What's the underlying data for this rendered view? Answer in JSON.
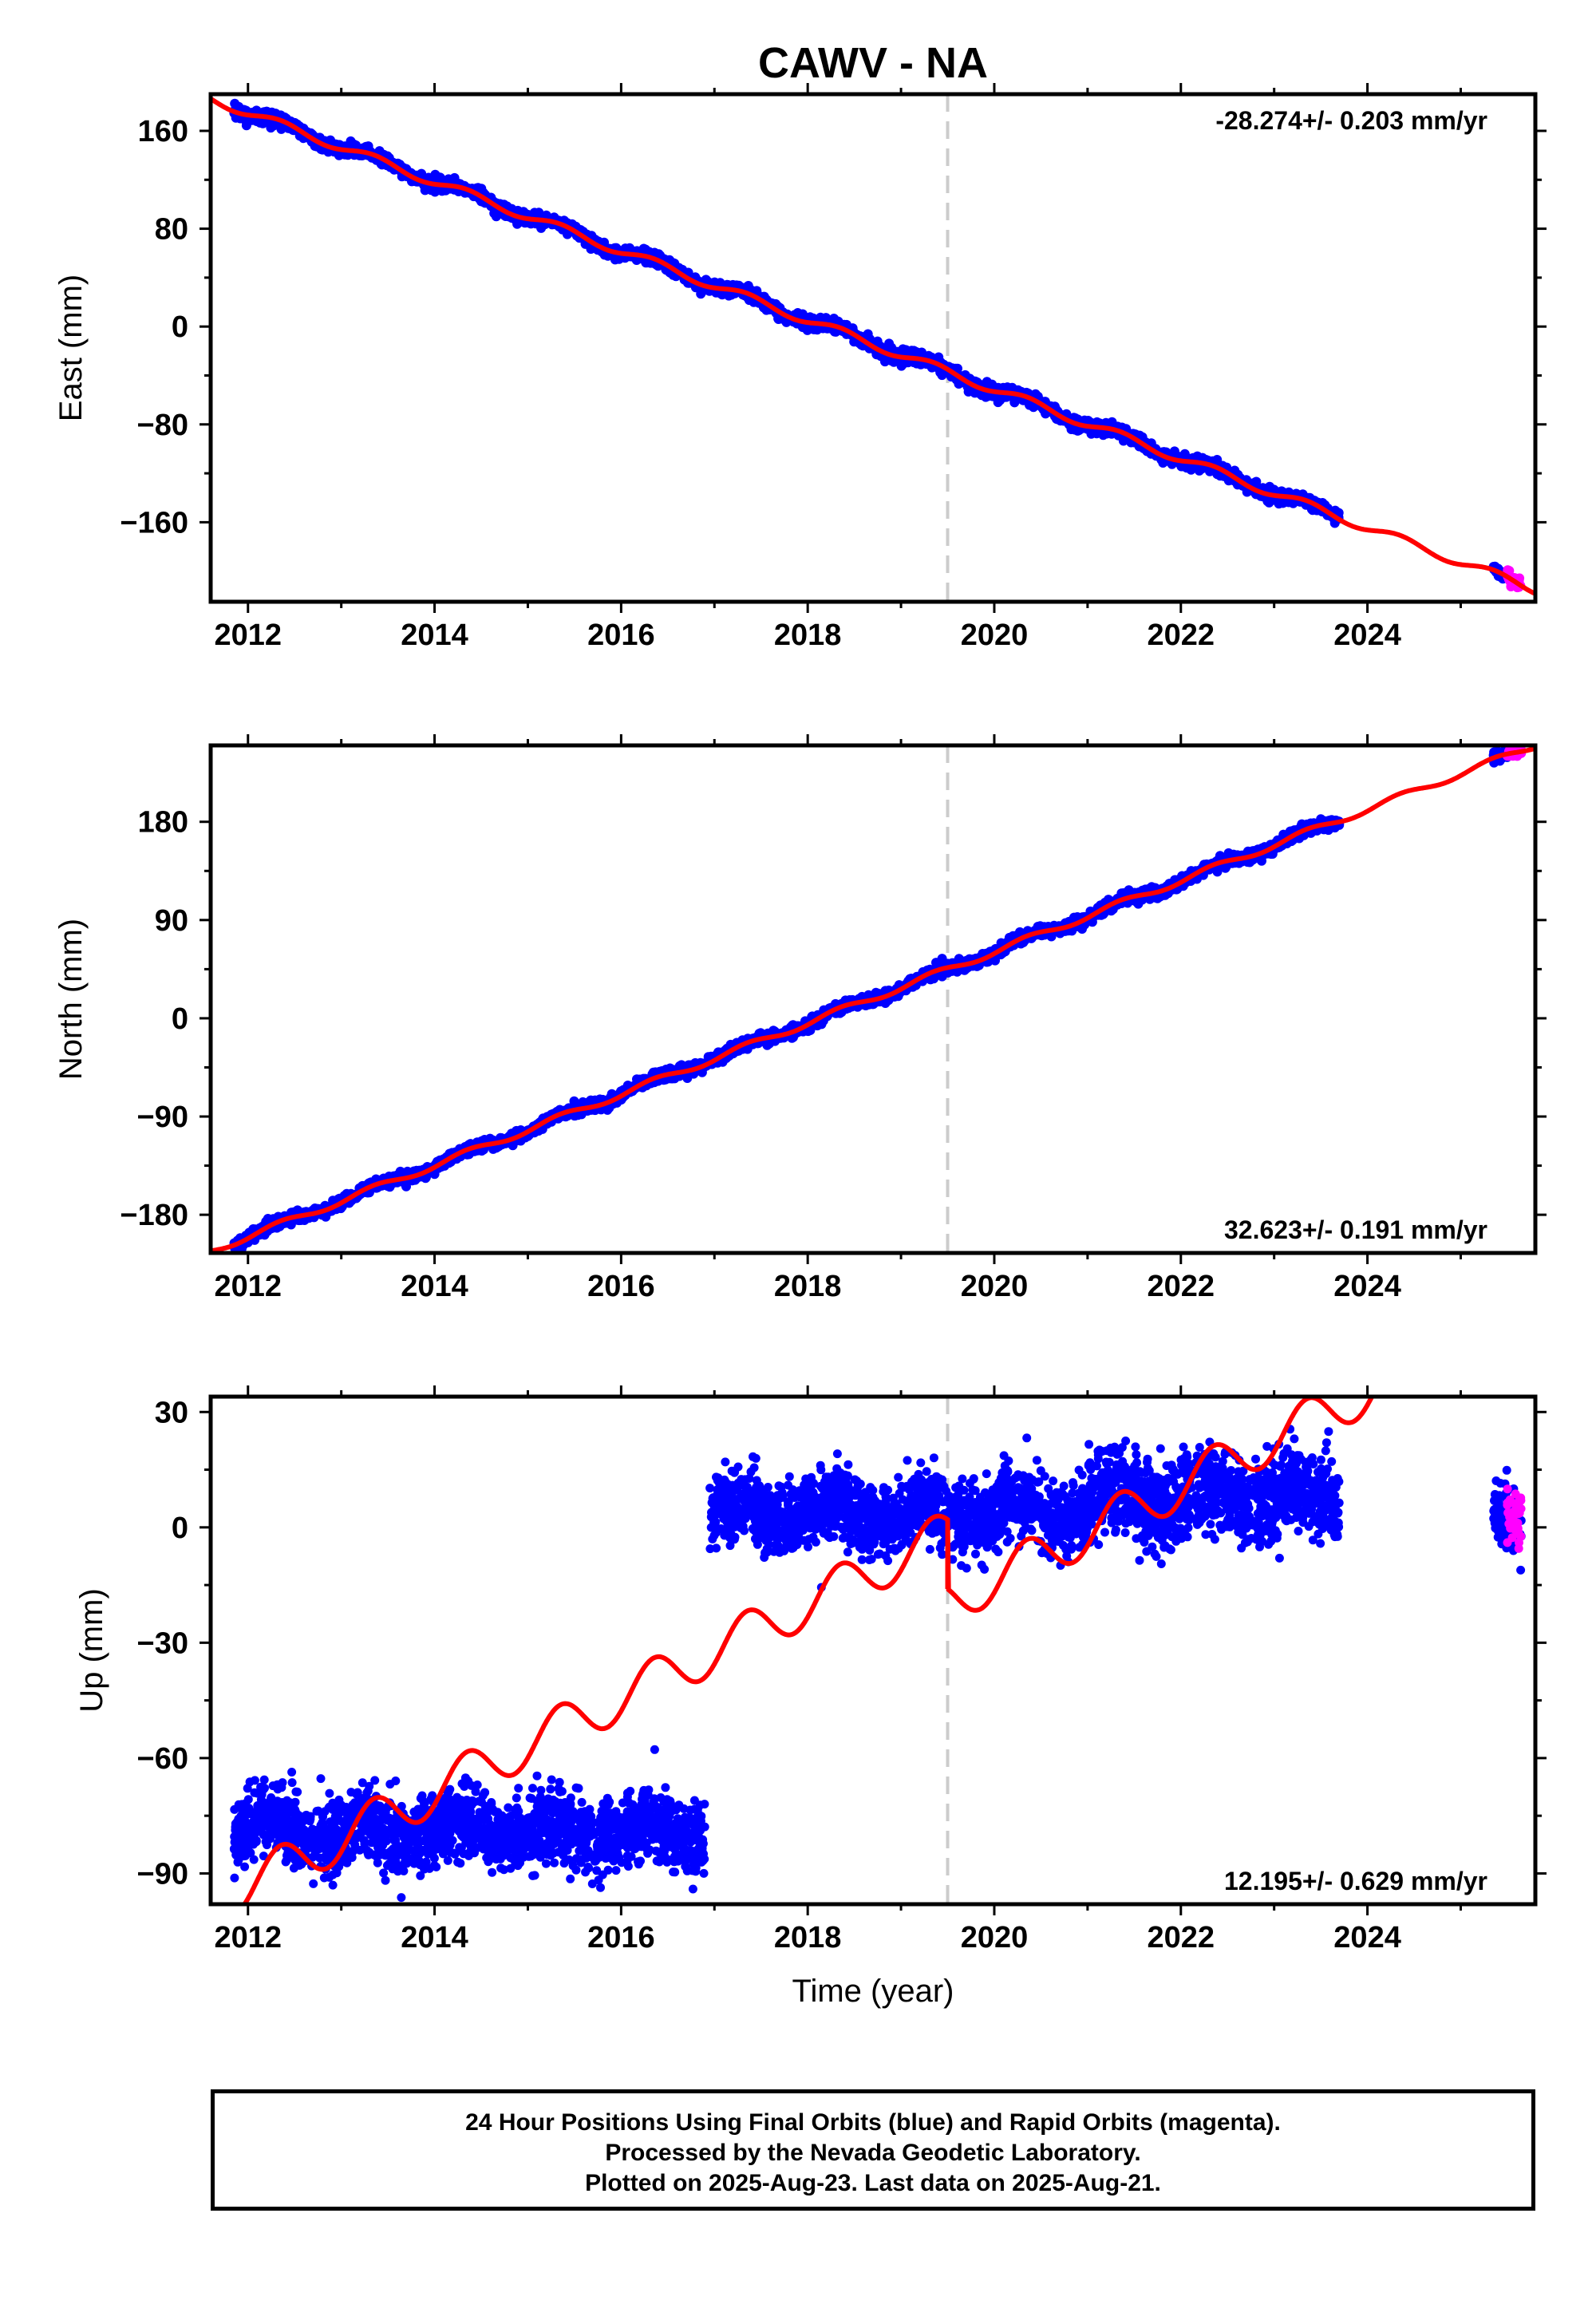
{
  "title": "CAWV - NA",
  "colors": {
    "final": "#0000ff",
    "rapid": "#ff00ff",
    "model": "#ff0000",
    "event": "#cccccc",
    "frame": "#000000"
  },
  "chart_data": [
    {
      "type": "scatter",
      "name": "east",
      "ylabel": "East (mm)",
      "xlabel": "",
      "xlim": [
        2011.6,
        2025.8
      ],
      "ylim": [
        -225,
        190
      ],
      "x_ticks": [
        2012,
        2014,
        2016,
        2018,
        2020,
        2022,
        2024
      ],
      "y_ticks": [
        160,
        80,
        0,
        -80,
        -160
      ],
      "y_tick_labels": [
        "160",
        "80",
        "0",
        "−80",
        "−160"
      ],
      "grid": false,
      "rate_label": "-28.274+/- 0.203 mm/yr",
      "rate_label_position": "top-right",
      "event_line_x": 2019.5,
      "trend": {
        "rate": -28.274,
        "y_at_2012": 175,
        "seasonal_amplitude": 3.5
      },
      "final_orbit_range": [
        2011.85,
        2023.7
      ],
      "rapid_orbit_range": [
        2025.35,
        2025.65
      ],
      "scatter": 2.5
    },
    {
      "type": "scatter",
      "name": "north",
      "ylabel": "North (mm)",
      "xlabel": "",
      "xlim": [
        2011.6,
        2025.8
      ],
      "ylim": [
        -215,
        250
      ],
      "x_ticks": [
        2012,
        2014,
        2016,
        2018,
        2020,
        2022,
        2024
      ],
      "y_ticks": [
        180,
        90,
        0,
        -90,
        -180
      ],
      "y_tick_labels": [
        "180",
        "90",
        "0",
        "−90",
        "−180"
      ],
      "grid": false,
      "rate_label": "32.623+/- 0.191 mm/yr",
      "rate_label_position": "bottom-right",
      "event_line_x": 2019.5,
      "trend": {
        "rate": 32.623,
        "y_at_2012": -200,
        "seasonal_amplitude": 3.0
      },
      "final_orbit_range": [
        2011.85,
        2023.7
      ],
      "rapid_orbit_range": [
        2025.35,
        2025.65
      ],
      "scatter": 2.5
    },
    {
      "type": "scatter",
      "name": "up",
      "ylabel": "Up (mm)",
      "xlabel": "Time (year)",
      "xlim": [
        2011.6,
        2025.8
      ],
      "ylim": [
        -98,
        34
      ],
      "x_ticks": [
        2012,
        2014,
        2016,
        2018,
        2020,
        2022,
        2024
      ],
      "y_ticks": [
        30,
        0,
        -30,
        -60,
        -90
      ],
      "y_tick_labels": [
        "30",
        "0",
        "−30",
        "−60",
        "−90"
      ],
      "grid": false,
      "rate_label": "12.195+/- 0.629 mm/yr",
      "rate_label_position": "bottom-right",
      "event_line_x": 2019.5,
      "trend": {
        "rate": 12.195,
        "y_at_2012": -93,
        "seasonal_amplitude": 6.0,
        "offset_at_event": -18,
        "offset_event_x": 2019.5
      },
      "segments": [
        {
          "from": 2011.85,
          "to": 2016.9,
          "mean": -79,
          "spread": 4.5
        },
        {
          "from": 2016.95,
          "to": 2021.0,
          "mean": 4,
          "spread": 4.5
        },
        {
          "from": 2021.0,
          "to": 2023.7,
          "mean": 8,
          "spread": 5.5
        },
        {
          "from": 2025.35,
          "to": 2025.65,
          "mean": 2,
          "spread": 4.0
        }
      ],
      "rapid_orbit_range": [
        2025.5,
        2025.65
      ]
    }
  ],
  "footer": {
    "line1": "24 Hour Positions Using Final Orbits (blue) and Rapid Orbits (magenta).",
    "line2": "Processed by the Nevada Geodetic Laboratory.",
    "line3": "Plotted on 2025-Aug-23. Last data on 2025-Aug-21."
  }
}
